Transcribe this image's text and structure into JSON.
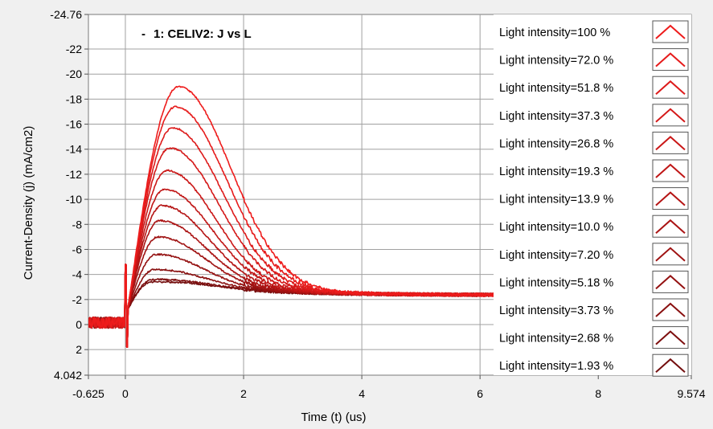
{
  "chart_data": {
    "type": "line",
    "title": "",
    "annotation": "1: CELIV2: J vs L",
    "annotation_marker": "-",
    "xlabel": "Time (t) (us)",
    "ylabel": "Current-Density (j) (mA/cm2)",
    "xlim": [
      -0.625,
      9.574
    ],
    "ylim": [
      4.042,
      -24.76
    ],
    "y_axis_inverted": true,
    "x_ticks": [
      {
        "value": -0.625,
        "label": "-0.625"
      },
      {
        "value": 0,
        "label": "0"
      },
      {
        "value": 2,
        "label": "2"
      },
      {
        "value": 4,
        "label": "4"
      },
      {
        "value": 6,
        "label": "6"
      },
      {
        "value": 8,
        "label": "8"
      },
      {
        "value": 9.574,
        "label": "9.574"
      }
    ],
    "y_ticks": [
      {
        "value": -24.76,
        "label": "-24.76"
      },
      {
        "value": -22,
        "label": "-22"
      },
      {
        "value": -20,
        "label": "-20"
      },
      {
        "value": -18,
        "label": "-18"
      },
      {
        "value": -16,
        "label": "-16"
      },
      {
        "value": -14,
        "label": "-14"
      },
      {
        "value": -12,
        "label": "-12"
      },
      {
        "value": -10,
        "label": "-10"
      },
      {
        "value": -8,
        "label": "-8"
      },
      {
        "value": -6,
        "label": "-6"
      },
      {
        "value": -4,
        "label": "-4"
      },
      {
        "value": -2,
        "label": "-2"
      },
      {
        "value": 0,
        "label": "0"
      },
      {
        "value": 2,
        "label": "2"
      },
      {
        "value": 4.042,
        "label": "4.042"
      }
    ],
    "grid": true,
    "legend_position": "right",
    "series": [
      {
        "name": "Light intensity=100 %",
        "color": "#ee1c1c",
        "peak_x": 0.9,
        "peak_y": -19.0,
        "tail_y": -2.35
      },
      {
        "name": "Light intensity=72.0 %",
        "color": "#e61b1b",
        "peak_x": 0.85,
        "peak_y": -17.4,
        "tail_y": -2.35
      },
      {
        "name": "Light intensity=51.8 %",
        "color": "#dd1a1a",
        "peak_x": 0.8,
        "peak_y": -15.7,
        "tail_y": -2.35
      },
      {
        "name": "Light intensity=37.3 %",
        "color": "#d41818",
        "peak_x": 0.75,
        "peak_y": -14.1,
        "tail_y": -2.35
      },
      {
        "name": "Light intensity=26.8 %",
        "color": "#ca1717",
        "peak_x": 0.7,
        "peak_y": -12.3,
        "tail_y": -2.35
      },
      {
        "name": "Light intensity=19.3 %",
        "color": "#c01616",
        "peak_x": 0.66,
        "peak_y": -10.8,
        "tail_y": -2.35
      },
      {
        "name": "Light intensity=13.9 %",
        "color": "#b51414",
        "peak_x": 0.62,
        "peak_y": -9.5,
        "tail_y": -2.35
      },
      {
        "name": "Light intensity=10.0 %",
        "color": "#aa1313",
        "peak_x": 0.58,
        "peak_y": -8.3,
        "tail_y": -2.35
      },
      {
        "name": "Light intensity=7.20 %",
        "color": "#9f1212",
        "peak_x": 0.55,
        "peak_y": -7.0,
        "tail_y": -2.35
      },
      {
        "name": "Light intensity=5.18 %",
        "color": "#941111",
        "peak_x": 0.52,
        "peak_y": -5.6,
        "tail_y": -2.35
      },
      {
        "name": "Light intensity=3.73 %",
        "color": "#891010",
        "peak_x": 0.49,
        "peak_y": -4.4,
        "tail_y": -2.35
      },
      {
        "name": "Light intensity=2.68 %",
        "color": "#7e0f0f",
        "peak_x": 0.46,
        "peak_y": -3.6,
        "tail_y": -2.35
      },
      {
        "name": "Light intensity=1.93 %",
        "color": "#730e0e",
        "peak_x": 0.44,
        "peak_y": -3.4,
        "tail_y": -2.35
      }
    ]
  }
}
